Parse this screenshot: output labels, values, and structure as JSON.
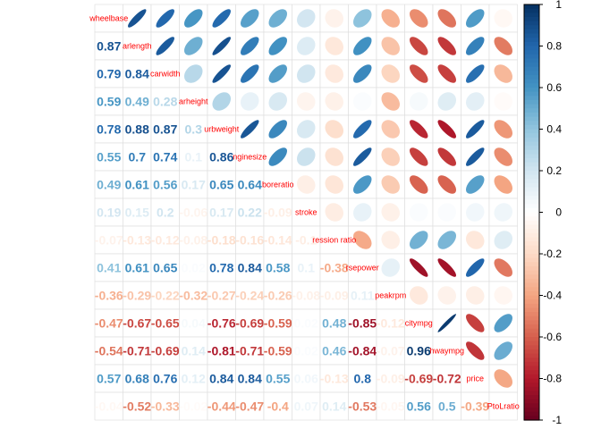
{
  "chart_data": {
    "type": "heatmap",
    "method_upper": "ellipse",
    "method_lower": "number",
    "variables": [
      "wheelbase",
      "carlength",
      "carwidth",
      "carheight",
      "curbweight",
      "enginesize",
      "boreratio",
      "stroke",
      "compressionratio",
      "horsepower",
      "peakrpm",
      "citympg",
      "highwaympg",
      "price",
      "PtoLratio"
    ],
    "variable_labels_shown": [
      "wheelbase",
      "arlength",
      "carwidth",
      "arheight",
      "urbweight",
      "nginesize",
      "boreratio",
      "stroke",
      "ression ratio",
      "rsepower",
      "peakrpm",
      "citympg",
      "hwaympg",
      "price",
      "PtoLratio"
    ],
    "matrix": [
      [
        1,
        0.87,
        0.79,
        0.59,
        0.78,
        0.55,
        0.49,
        0.19,
        -0.07,
        0.41,
        -0.36,
        -0.47,
        -0.54,
        0.57,
        -0.04
      ],
      [
        0.87,
        1,
        0.84,
        0.49,
        0.88,
        0.7,
        0.61,
        0.15,
        -0.13,
        0.61,
        -0.29,
        -0.67,
        -0.71,
        0.68,
        -0.52
      ],
      [
        0.79,
        0.84,
        1,
        0.28,
        0.87,
        0.74,
        0.56,
        0.2,
        -0.12,
        0.65,
        -0.22,
        -0.65,
        -0.69,
        0.76,
        -0.33
      ],
      [
        0.59,
        0.49,
        0.28,
        1,
        0.3,
        0.1,
        0.17,
        -0.06,
        -0.08,
        0.02,
        -0.32,
        0.04,
        0.14,
        0.12,
        -0.02
      ],
      [
        0.78,
        0.88,
        0.87,
        0.3,
        1,
        0.86,
        0.65,
        0.17,
        -0.18,
        0.78,
        -0.27,
        -0.76,
        -0.81,
        0.84,
        -0.44
      ],
      [
        0.55,
        0.7,
        0.74,
        0.1,
        0.86,
        1,
        0.64,
        0.22,
        -0.16,
        0.84,
        -0.24,
        -0.69,
        -0.71,
        0.84,
        -0.47
      ],
      [
        0.49,
        0.61,
        0.56,
        0.17,
        0.65,
        0.64,
        1,
        -0.09,
        -0.14,
        0.58,
        -0.26,
        -0.59,
        -0.59,
        0.55,
        -0.4
      ],
      [
        0.19,
        0.15,
        0.2,
        -0.06,
        0.17,
        0.22,
        -0.09,
        1,
        -0.1,
        0.1,
        -0.08,
        0.02,
        0.02,
        0.06,
        0.07
      ],
      [
        -0.07,
        -0.13,
        -0.12,
        -0.08,
        -0.18,
        -0.16,
        -0.14,
        -0.1,
        1,
        -0.38,
        -0.09,
        0.48,
        0.46,
        -0.13,
        0.14
      ],
      [
        0.41,
        0.61,
        0.65,
        0.02,
        0.78,
        0.84,
        0.58,
        0.1,
        -0.38,
        1,
        0.11,
        -0.85,
        -0.84,
        0.8,
        -0.53
      ],
      [
        -0.36,
        -0.29,
        -0.22,
        -0.32,
        -0.27,
        -0.24,
        -0.26,
        -0.08,
        -0.09,
        0.11,
        1,
        -0.12,
        -0.07,
        -0.09,
        -0.05
      ],
      [
        -0.47,
        -0.67,
        -0.65,
        0.04,
        -0.76,
        -0.69,
        -0.59,
        0.02,
        0.48,
        -0.85,
        -0.12,
        1,
        0.96,
        -0.69,
        0.56
      ],
      [
        -0.54,
        -0.71,
        -0.69,
        0.14,
        -0.81,
        -0.71,
        -0.59,
        0.02,
        0.46,
        -0.84,
        -0.07,
        0.96,
        1,
        -0.72,
        0.5
      ],
      [
        0.57,
        0.68,
        0.76,
        0.12,
        0.84,
        0.84,
        0.55,
        0.06,
        -0.13,
        0.8,
        -0.09,
        -0.69,
        -0.72,
        1,
        -0.39
      ],
      [
        -0.04,
        -0.52,
        -0.33,
        -0.02,
        -0.44,
        -0.47,
        -0.4,
        0.07,
        0.14,
        -0.53,
        -0.05,
        0.56,
        0.5,
        -0.39,
        1
      ]
    ],
    "lower_numbers_shown": [
      [],
      [
        "0.87"
      ],
      [
        "0.79",
        "0.84"
      ],
      [
        "0.59",
        "0.49",
        "0.28"
      ],
      [
        "0.78",
        "0.88",
        "0.87",
        "0.3"
      ],
      [
        "0.55",
        "0.7",
        "0.74",
        "0.1",
        "0.86"
      ],
      [
        "0.49",
        "0.61",
        "0.56",
        "0.17",
        "0.65",
        "0.64"
      ],
      [
        "0.19",
        "0.15",
        "0.2",
        "-0.06",
        "0.17",
        "0.22",
        "-0.09"
      ],
      [
        "-0.07",
        "-0.13",
        "-0.12",
        "-0.08",
        "-0.18",
        "-0.16",
        "-0.14",
        "-0.1"
      ],
      [
        "0.41",
        "0.61",
        "0.65",
        "0.02",
        "0.78",
        "0.84",
        "0.58",
        "0.1",
        "-0.38"
      ],
      [
        "-0.36",
        "-0.29",
        "-0.22",
        "-0.32",
        "-0.27",
        "-0.24",
        "-0.26",
        "-0.08",
        "-0.09",
        "0.11"
      ],
      [
        "-0.47",
        "-0.67",
        "-0.65",
        "0.04",
        "-0.76",
        "-0.69",
        "-0.59",
        "0.02",
        "0.48",
        "-0.85",
        "-0.12"
      ],
      [
        "-0.54",
        "-0.71",
        "-0.69",
        "0.14",
        "-0.81",
        "-0.71",
        "-0.59",
        "0.02",
        "0.46",
        "-0.84",
        "-0.07",
        "0.96"
      ],
      [
        "0.57",
        "0.68",
        "0.76",
        "0.12",
        "0.84",
        "0.84",
        "0.55",
        "0.06",
        "-0.13",
        "0.8",
        "-0.09",
        "-0.69",
        "-0.72"
      ],
      [
        "-0.04",
        "-0.52",
        "-0.33",
        "-0.02",
        "-0.44",
        "-0.47",
        "-0.4",
        "0.07",
        "0.14",
        "-0.53",
        "-0.05",
        "0.56",
        "0.5",
        "-0.39"
      ]
    ],
    "colorbar": {
      "ticks": [
        "1",
        "0.8",
        "0.6",
        "0.4",
        "0.2",
        "0",
        "-0.2",
        "-0.4",
        "-0.6",
        "-0.8",
        "-1"
      ],
      "ticks_values": [
        1,
        0.8,
        0.6,
        0.4,
        0.2,
        0,
        -0.2,
        -0.4,
        -0.6,
        -0.8,
        -1
      ],
      "range": [
        -1,
        1
      ],
      "palette": [
        "#67001f",
        "#b2182b",
        "#d6604d",
        "#f4a582",
        "#fddbc7",
        "#ffffff",
        "#d1e5f0",
        "#92c5de",
        "#4393c3",
        "#2166ac",
        "#053061"
      ]
    },
    "label_color": "#ff0000",
    "grid": true,
    "legend": "right"
  }
}
